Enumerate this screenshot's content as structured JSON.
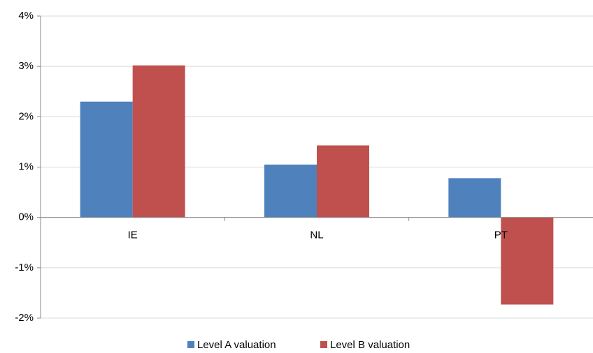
{
  "chart_data": {
    "type": "bar",
    "categories": [
      "IE",
      "NL",
      "PT"
    ],
    "series": [
      {
        "name": "Level A valuation",
        "color": "#4f81bd",
        "values": [
          2.3,
          1.05,
          0.78
        ]
      },
      {
        "name": "Level B valuation",
        "color": "#c0504d",
        "values": [
          3.02,
          1.43,
          -1.73
        ]
      }
    ],
    "ylim": [
      -2,
      4
    ],
    "yticks": [
      {
        "value": -2,
        "label": "-2%"
      },
      {
        "value": -1,
        "label": "-1%"
      },
      {
        "value": 0,
        "label": "0%"
      },
      {
        "value": 1,
        "label": "1%"
      },
      {
        "value": 2,
        "label": "2%"
      },
      {
        "value": 3,
        "label": "3%"
      },
      {
        "value": 4,
        "label": "4%"
      }
    ],
    "grid": true,
    "legend": "bottom"
  }
}
